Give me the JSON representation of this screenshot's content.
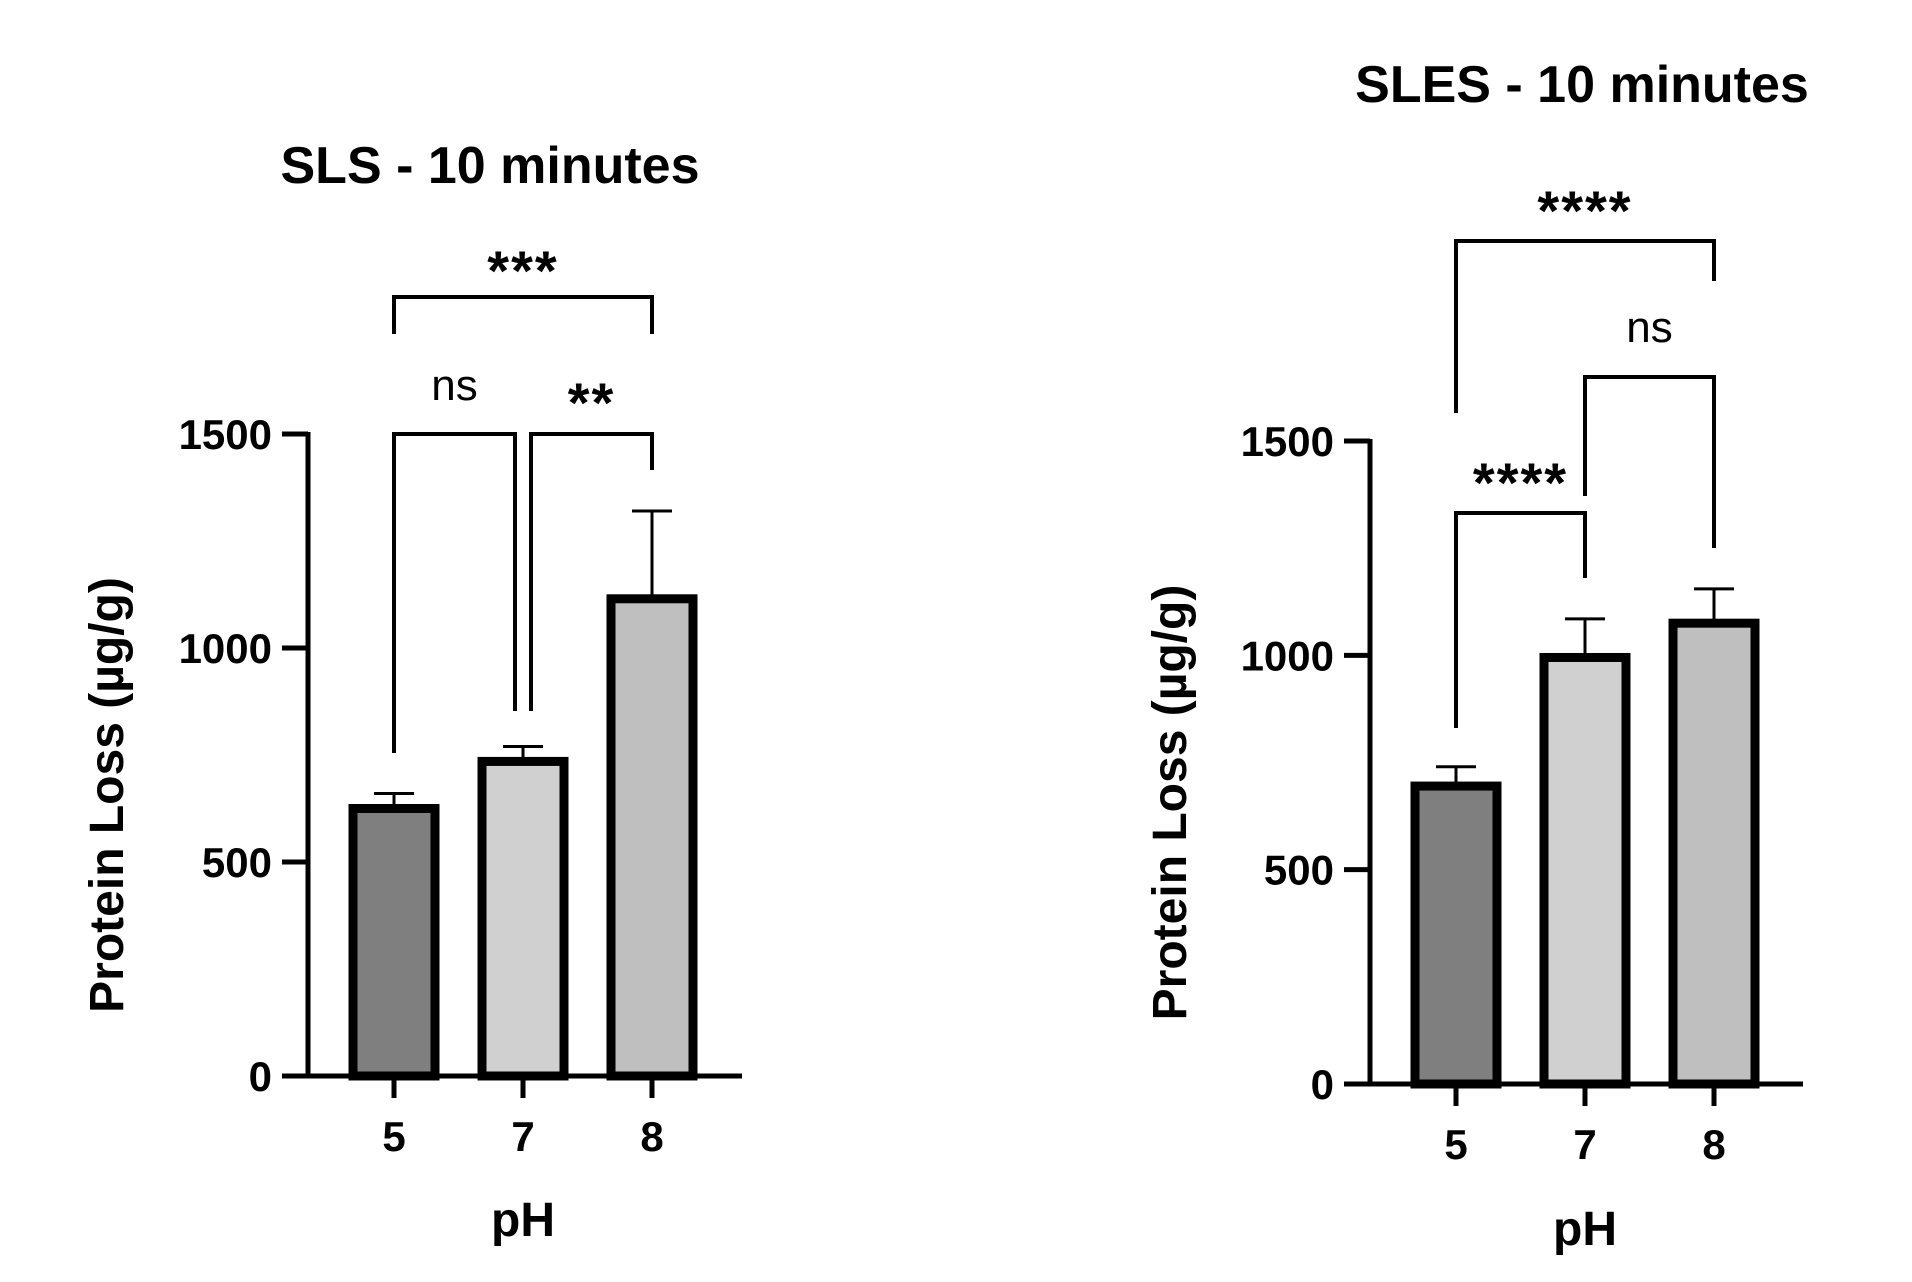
{
  "chart_data": [
    {
      "type": "bar",
      "title": "SLS - 10 minutes",
      "xlabel": "pH",
      "ylabel": "Protein Loss (µg/g)",
      "categories": [
        "5",
        "7",
        "8"
      ],
      "values": [
        625,
        735,
        1115
      ],
      "errors": [
        35,
        35,
        205
      ],
      "bar_colors": [
        "#7f7f7f",
        "#d0d0d0",
        "#bfbfbf"
      ],
      "ylim": [
        0,
        1500
      ],
      "yticks": [
        0,
        500,
        1000,
        1500
      ],
      "ytick_labels": [
        "0",
        "500",
        "1000",
        "1500"
      ],
      "grid": false,
      "comparisons": [
        {
          "from": "5",
          "to": "7",
          "label": "ns"
        },
        {
          "from": "7",
          "to": "8",
          "label": "**"
        },
        {
          "from": "5",
          "to": "8",
          "label": "***"
        }
      ]
    },
    {
      "type": "bar",
      "title": "SLES - 10 minutes",
      "xlabel": "pH",
      "ylabel": "Protein Loss (µg/g)",
      "categories": [
        "5",
        "7",
        "8"
      ],
      "values": [
        695,
        995,
        1075
      ],
      "errors": [
        45,
        90,
        80
      ],
      "bar_colors": [
        "#7f7f7f",
        "#d0d0d0",
        "#bfbfbf"
      ],
      "ylim": [
        0,
        1500
      ],
      "yticks": [
        0,
        500,
        1000,
        1500
      ],
      "ytick_labels": [
        "0",
        "500",
        "1000",
        "1500"
      ],
      "grid": false,
      "comparisons": [
        {
          "from": "5",
          "to": "7",
          "label": "****"
        },
        {
          "from": "7",
          "to": "8",
          "label": "ns"
        },
        {
          "from": "5",
          "to": "8",
          "label": "****"
        }
      ]
    }
  ]
}
